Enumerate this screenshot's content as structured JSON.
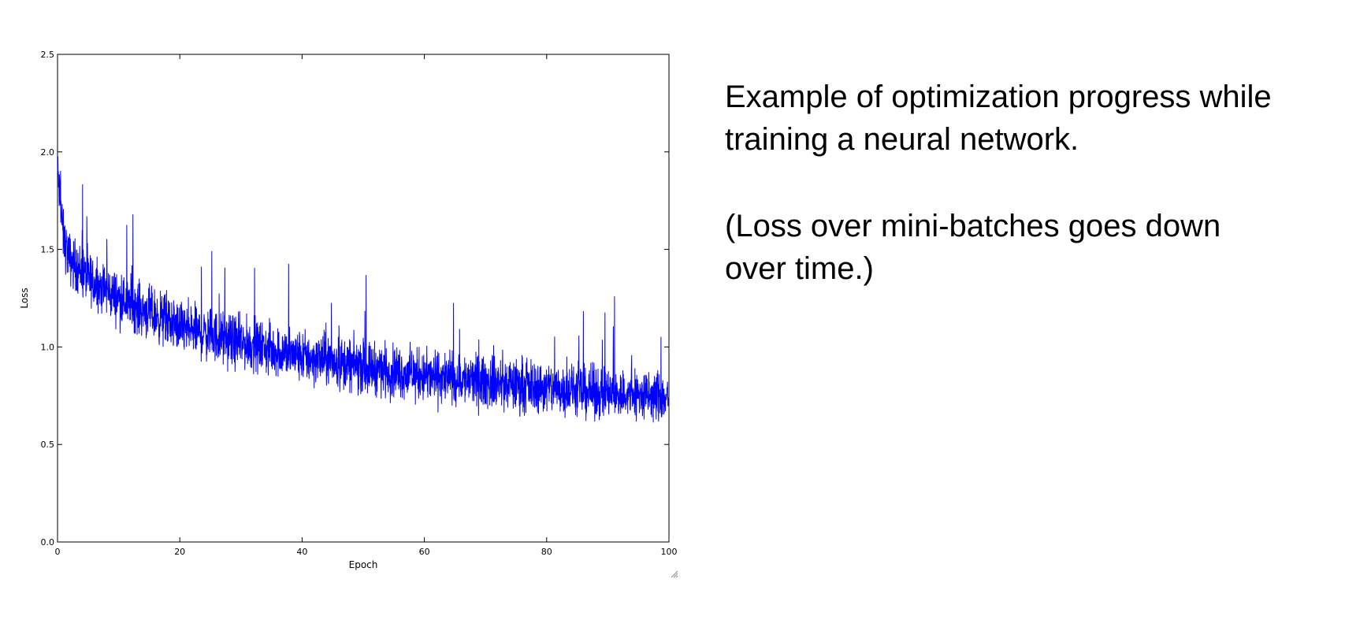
{
  "chart_data": {
    "type": "line",
    "title": "",
    "xlabel": "Epoch",
    "ylabel": "Loss",
    "xlim": [
      0,
      100
    ],
    "ylim": [
      0.0,
      2.5
    ],
    "xticks": [
      "0",
      "20",
      "40",
      "60",
      "80",
      "100"
    ],
    "yticks": [
      "0.0",
      "0.5",
      "1.0",
      "1.5",
      "2.0",
      "2.5"
    ],
    "grid": false,
    "legend": "none",
    "series": [
      {
        "color": "#0000ff",
        "trend_x": [
          0,
          1,
          2,
          5,
          10,
          20,
          30,
          40,
          50,
          60,
          70,
          80,
          90,
          100
        ],
        "trend_y": [
          1.9,
          1.55,
          1.45,
          1.35,
          1.25,
          1.1,
          1.02,
          0.95,
          0.9,
          0.85,
          0.82,
          0.79,
          0.76,
          0.74
        ],
        "noise_amplitude": 0.15,
        "max_value": 2.1,
        "min_value": 0.47
      }
    ]
  },
  "caption": {
    "lines1": [
      "Example of optimization progress while",
      "training a neural network."
    ],
    "lines2": [
      "(Loss over mini-batches goes down",
      "over time.)"
    ]
  }
}
